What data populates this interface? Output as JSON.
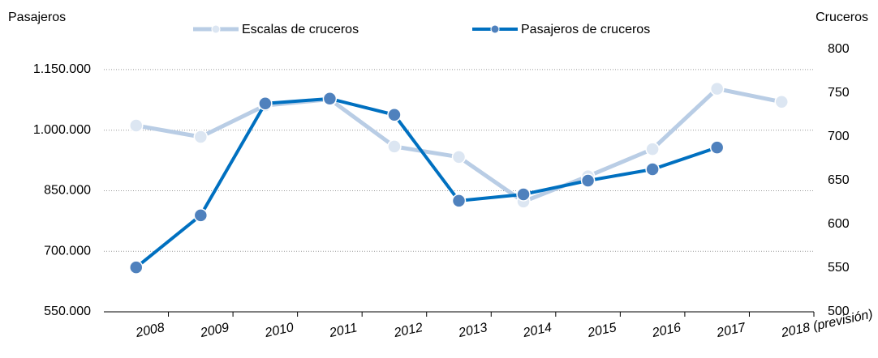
{
  "chart_data": {
    "type": "line",
    "y_label": "Pasajeros",
    "y2_label": "Cruceros",
    "categories": [
      "2008",
      "2009",
      "2010",
      "2011",
      "2012",
      "2013",
      "2014",
      "2015",
      "2016",
      "2017",
      "2018 (previsión)"
    ],
    "series": [
      {
        "name": "Escalas de cruceros",
        "color": "#b9cde5",
        "marker_color": "#dce6f2",
        "axis": "y2",
        "values": [
          713,
          700,
          736,
          743,
          689,
          677,
          626,
          655,
          686,
          755,
          740
        ]
      },
      {
        "name": "Pasajeros de cruceros",
        "color": "#0070c0",
        "marker_color": "#4f81bd",
        "axis": "y",
        "values": [
          660000,
          789000,
          1066000,
          1078000,
          1038000,
          825000,
          841000,
          875000,
          903000,
          957000,
          null
        ]
      }
    ],
    "ylim": [
      550000,
      1200000
    ],
    "yticks": [
      {
        "value": 550000,
        "label": "550.000"
      },
      {
        "value": 700000,
        "label": "700.000"
      },
      {
        "value": 850000,
        "label": "850.000"
      },
      {
        "value": 1000000,
        "label": "1.000.000"
      },
      {
        "value": 1150000,
        "label": "1.150.000"
      }
    ],
    "y2lim": [
      500,
      800
    ],
    "y2ticks": [
      500,
      550,
      600,
      650,
      700,
      750,
      800
    ],
    "grid": true,
    "legend": "top"
  }
}
